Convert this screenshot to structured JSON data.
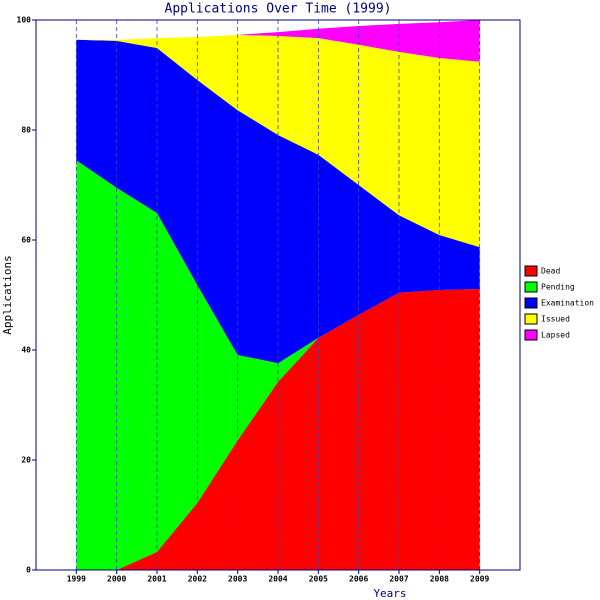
{
  "chart_data": {
    "type": "stacked-area",
    "title": "Applications Over Time (1999)",
    "x_label": "Years",
    "y_label": "Applications",
    "x": [
      1999,
      2000,
      2001,
      2002,
      2003,
      2004,
      2005,
      2006,
      2007,
      2008,
      2009
    ],
    "xlim": [
      1998,
      2010
    ],
    "xticks": [
      1999,
      2000,
      2001,
      2002,
      2003,
      2004,
      2005,
      2006,
      2007,
      2008,
      2009
    ],
    "ylim": [
      0,
      100
    ],
    "yticks": [
      0,
      20,
      40,
      60,
      80,
      100
    ],
    "grid": true,
    "legend": "right",
    "series": [
      {
        "name": "Dead",
        "color": "#ff0000",
        "values": [
          0,
          0,
          3.3,
          12.2,
          23.6,
          34.2,
          42.2,
          46.4,
          50.4,
          50.9,
          51.1
        ]
      },
      {
        "name": "Pending",
        "color": "#00ff00",
        "values": [
          74.5,
          69.5,
          61.6,
          39.6,
          15.5,
          3.4,
          0,
          0,
          0,
          0,
          0
        ]
      },
      {
        "name": "Examination",
        "color": "#0000ff",
        "values": [
          21.9,
          26.7,
          30,
          37.3,
          44.5,
          41.5,
          33.3,
          23.6,
          14.1,
          10,
          7.6
        ]
      },
      {
        "name": "Issued",
        "color": "#ffff00",
        "values": [
          0,
          0.2,
          1.8,
          7.8,
          13.7,
          18,
          21.2,
          25.5,
          29.7,
          32.2,
          33.7
        ]
      },
      {
        "name": "Lapsed",
        "color": "#ff00ff",
        "values": [
          0,
          0,
          0,
          0,
          0,
          0.7,
          1.7,
          3.4,
          5.1,
          6.5,
          7.6
        ]
      }
    ]
  }
}
